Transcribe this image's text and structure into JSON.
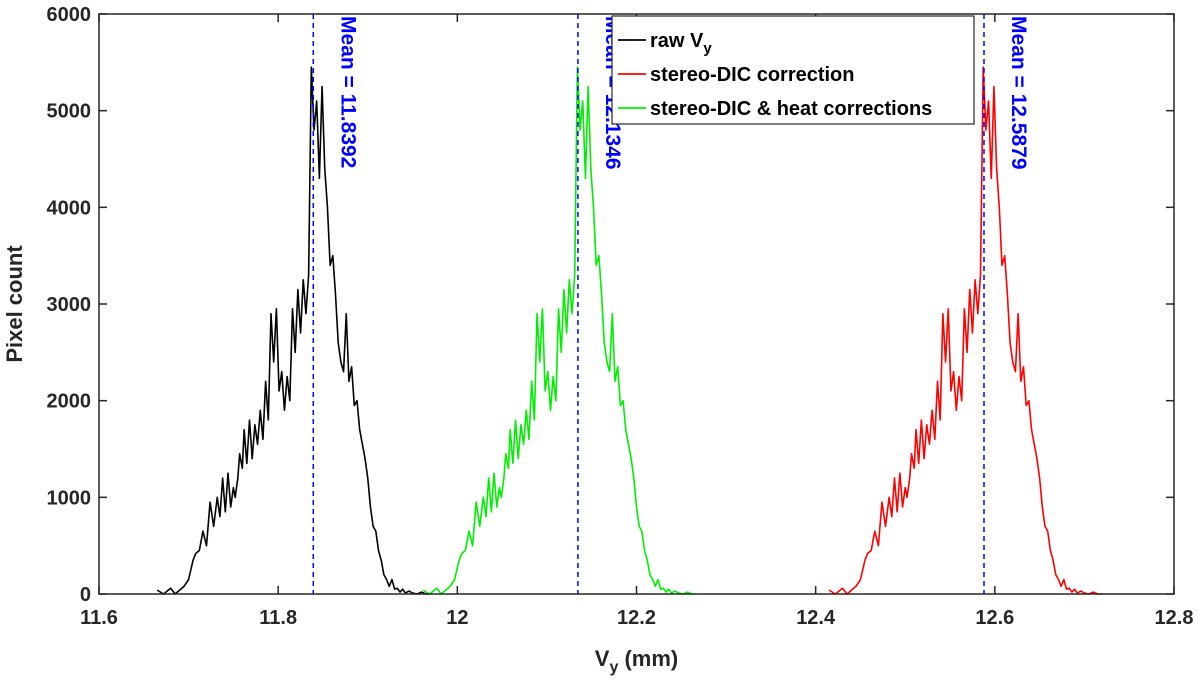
{
  "chart_data": {
    "type": "line",
    "title": "",
    "xlabel": "V",
    "xlabel_sub": "y",
    "xlabel_unit": " (mm)",
    "ylabel": "Pixel count",
    "xlim": [
      11.6,
      12.8
    ],
    "ylim": [
      0,
      6000
    ],
    "x_ticks": [
      11.6,
      11.8,
      12,
      12.2,
      12.4,
      12.6,
      12.8
    ],
    "x_tick_labels": [
      "11.6",
      "11.8",
      "12",
      "12.2",
      "12.4",
      "12.6",
      "12.8"
    ],
    "y_ticks": [
      0,
      1000,
      2000,
      3000,
      4000,
      5000,
      6000
    ],
    "y_tick_labels": [
      "0",
      "1000",
      "2000",
      "3000",
      "4000",
      "5000",
      "6000"
    ],
    "grid": false,
    "legend_position": "top-right",
    "series": [
      {
        "name": "raw V",
        "name_sub": "y",
        "color": "#000000",
        "x": [
          11.665,
          11.672,
          11.68,
          11.685,
          11.695,
          11.7,
          11.705,
          11.708,
          11.712,
          11.716,
          11.72,
          11.724,
          11.728,
          11.732,
          11.735,
          11.738,
          11.741,
          11.744,
          11.747,
          11.75,
          11.752,
          11.755,
          11.757,
          11.76,
          11.762,
          11.765,
          11.768,
          11.771,
          11.774,
          11.777,
          11.78,
          11.783,
          11.786,
          11.789,
          11.792,
          11.795,
          11.798,
          11.801,
          11.804,
          11.807,
          11.81,
          11.813,
          11.816,
          11.819,
          11.822,
          11.825,
          11.828,
          11.831,
          11.834,
          11.837,
          11.84,
          11.843,
          11.846,
          11.849,
          11.852,
          11.855,
          11.858,
          11.861,
          11.864,
          11.867,
          11.87,
          11.873,
          11.876,
          11.879,
          11.882,
          11.885,
          11.888,
          11.891,
          11.894,
          11.897,
          11.9,
          11.903,
          11.906,
          11.909,
          11.912,
          11.915,
          11.918,
          11.921,
          11.924,
          11.927,
          11.93,
          11.933,
          11.936,
          11.939,
          11.942,
          11.946,
          11.95,
          11.955,
          11.96,
          11.965,
          11.97
        ],
        "y": [
          40,
          0,
          60,
          0,
          80,
          150,
          350,
          420,
          450,
          650,
          500,
          950,
          700,
          1000,
          800,
          1200,
          850,
          1250,
          900,
          1100,
          1000,
          1200,
          1450,
          1300,
          1700,
          1350,
          1800,
          1400,
          1750,
          1550,
          1900,
          1600,
          2200,
          1800,
          2900,
          2400,
          2950,
          2100,
          2300,
          1900,
          2250,
          2000,
          2950,
          2500,
          3150,
          2700,
          3250,
          2900,
          3300,
          5450,
          4800,
          5100,
          4300,
          5250,
          4400,
          4000,
          3400,
          3500,
          3100,
          2600,
          2400,
          2300,
          2900,
          2200,
          2350,
          1950,
          2000,
          1700,
          1550,
          1400,
          1200,
          900,
          700,
          650,
          450,
          350,
          200,
          150,
          80,
          150,
          50,
          60,
          20,
          50,
          10,
          30,
          10,
          0,
          20,
          0,
          0
        ]
      },
      {
        "name": "stereo-DIC correction",
        "color": "#ff0000",
        "x": [
          12.415,
          12.422,
          12.43,
          12.435,
          12.445,
          12.45,
          12.455,
          12.458,
          12.462,
          12.466,
          12.47,
          12.474,
          12.478,
          12.482,
          12.485,
          12.488,
          12.491,
          12.494,
          12.497,
          12.5,
          12.502,
          12.505,
          12.507,
          12.51,
          12.512,
          12.515,
          12.518,
          12.521,
          12.524,
          12.527,
          12.53,
          12.533,
          12.536,
          12.539,
          12.542,
          12.545,
          12.548,
          12.551,
          12.554,
          12.557,
          12.56,
          12.563,
          12.566,
          12.569,
          12.572,
          12.575,
          12.578,
          12.581,
          12.584,
          12.587,
          12.59,
          12.593,
          12.596,
          12.599,
          12.602,
          12.605,
          12.608,
          12.611,
          12.614,
          12.617,
          12.62,
          12.623,
          12.626,
          12.629,
          12.632,
          12.635,
          12.638,
          12.641,
          12.644,
          12.647,
          12.65,
          12.653,
          12.656,
          12.659,
          12.662,
          12.665,
          12.668,
          12.671,
          12.674,
          12.677,
          12.68,
          12.683,
          12.686,
          12.689,
          12.692,
          12.696,
          12.7,
          12.705,
          12.71,
          12.715,
          12.72
        ],
        "y": [
          40,
          0,
          60,
          0,
          80,
          150,
          350,
          420,
          450,
          650,
          500,
          950,
          700,
          1000,
          800,
          1200,
          850,
          1250,
          900,
          1100,
          1000,
          1200,
          1450,
          1300,
          1700,
          1350,
          1800,
          1400,
          1750,
          1550,
          1900,
          1600,
          2200,
          1800,
          2900,
          2400,
          2950,
          2100,
          2300,
          1900,
          2250,
          2000,
          2950,
          2500,
          3150,
          2700,
          3250,
          2900,
          3300,
          5450,
          4800,
          5100,
          4300,
          5250,
          4400,
          4000,
          3400,
          3500,
          3100,
          2600,
          2400,
          2300,
          2900,
          2200,
          2350,
          1950,
          2000,
          1700,
          1550,
          1400,
          1200,
          900,
          700,
          650,
          450,
          350,
          200,
          150,
          80,
          150,
          50,
          60,
          20,
          50,
          10,
          30,
          10,
          0,
          20,
          0,
          0
        ]
      },
      {
        "name": "stereo-DIC & heat corrections",
        "color": "#00ee00",
        "x": [
          11.962,
          11.969,
          11.977,
          11.982,
          11.992,
          11.997,
          12.002,
          12.005,
          12.009,
          12.013,
          12.017,
          12.021,
          12.025,
          12.029,
          12.032,
          12.035,
          12.038,
          12.041,
          12.044,
          12.047,
          12.049,
          12.052,
          12.054,
          12.057,
          12.059,
          12.062,
          12.065,
          12.068,
          12.071,
          12.074,
          12.077,
          12.08,
          12.083,
          12.086,
          12.089,
          12.092,
          12.095,
          12.098,
          12.101,
          12.104,
          12.107,
          12.11,
          12.113,
          12.116,
          12.119,
          12.122,
          12.125,
          12.128,
          12.131,
          12.134,
          12.137,
          12.14,
          12.143,
          12.146,
          12.149,
          12.152,
          12.155,
          12.158,
          12.161,
          12.164,
          12.167,
          12.17,
          12.173,
          12.176,
          12.179,
          12.182,
          12.185,
          12.188,
          12.191,
          12.194,
          12.197,
          12.2,
          12.203,
          12.206,
          12.209,
          12.212,
          12.215,
          12.218,
          12.221,
          12.224,
          12.227,
          12.23,
          12.233,
          12.236,
          12.239,
          12.243,
          12.247,
          12.252,
          12.257,
          12.262,
          12.267
        ],
        "y": [
          40,
          0,
          60,
          0,
          80,
          150,
          350,
          420,
          450,
          650,
          500,
          950,
          700,
          1000,
          800,
          1200,
          850,
          1250,
          900,
          1100,
          1000,
          1200,
          1450,
          1300,
          1700,
          1350,
          1800,
          1400,
          1750,
          1550,
          1900,
          1600,
          2200,
          1800,
          2900,
          2400,
          2950,
          2100,
          2300,
          1900,
          2250,
          2000,
          2950,
          2500,
          3150,
          2700,
          3250,
          2900,
          3300,
          5450,
          4800,
          5100,
          4300,
          5250,
          4400,
          4000,
          3400,
          3500,
          3100,
          2600,
          2400,
          2300,
          2900,
          2200,
          2350,
          1950,
          2000,
          1700,
          1550,
          1400,
          1200,
          900,
          700,
          650,
          450,
          350,
          200,
          150,
          80,
          150,
          50,
          60,
          20,
          50,
          10,
          30,
          10,
          0,
          20,
          0,
          0
        ]
      }
    ],
    "mean_lines": [
      {
        "x": 11.8392,
        "label": "Mean = 11.8392",
        "color": "#0000ff"
      },
      {
        "x": 12.1346,
        "label": "Mean = 12.1346",
        "color": "#0000ff"
      },
      {
        "x": 12.5879,
        "label": "Mean = 12.5879",
        "color": "#0000ff"
      }
    ]
  }
}
